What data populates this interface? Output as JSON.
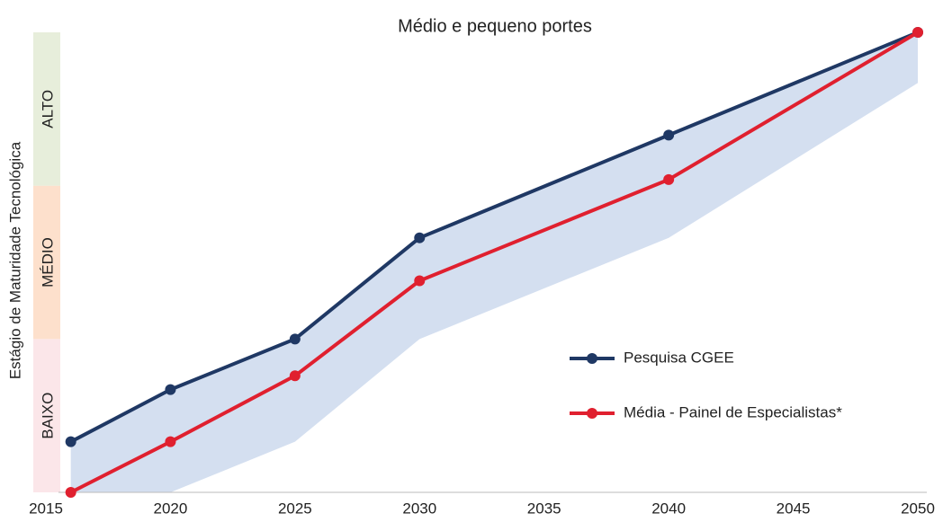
{
  "chart_data": {
    "type": "line",
    "title": "Médio e pequeno portes",
    "ylabel": "Estágio de Maturidade Tecnológica",
    "x": [
      2016,
      2020,
      2025,
      2030,
      2040,
      2050
    ],
    "xlim": [
      2015,
      2050
    ],
    "xticks": [
      2015,
      2020,
      2025,
      2030,
      2035,
      2040,
      2045,
      2050
    ],
    "ylim": [
      0,
      3
    ],
    "bands": [
      {
        "label": "BAIXO",
        "from": 0,
        "to": 1,
        "color": "#fbe6e9"
      },
      {
        "label": "MÉDIO",
        "from": 1,
        "to": 2,
        "color": "#fde0cc"
      },
      {
        "label": "ALTO",
        "from": 2,
        "to": 3,
        "color": "#e7eedb"
      }
    ],
    "range": {
      "color": "#d4dff0",
      "upper": [
        0.33,
        0.67,
        1.0,
        1.66,
        2.33,
        3
      ],
      "lower": [
        0,
        0,
        0.33,
        1.0,
        1.66,
        2.67
      ]
    },
    "series": [
      {
        "name": "Pesquisa CGEE",
        "color": "#1f3864",
        "values": [
          0.33,
          0.67,
          1.0,
          1.66,
          2.33,
          3
        ]
      },
      {
        "name": "Média - Painel de Especialistas*",
        "color": "#e0202f",
        "values": [
          0,
          0.33,
          0.76,
          1.38,
          2.04,
          3
        ]
      }
    ],
    "grid": false
  }
}
